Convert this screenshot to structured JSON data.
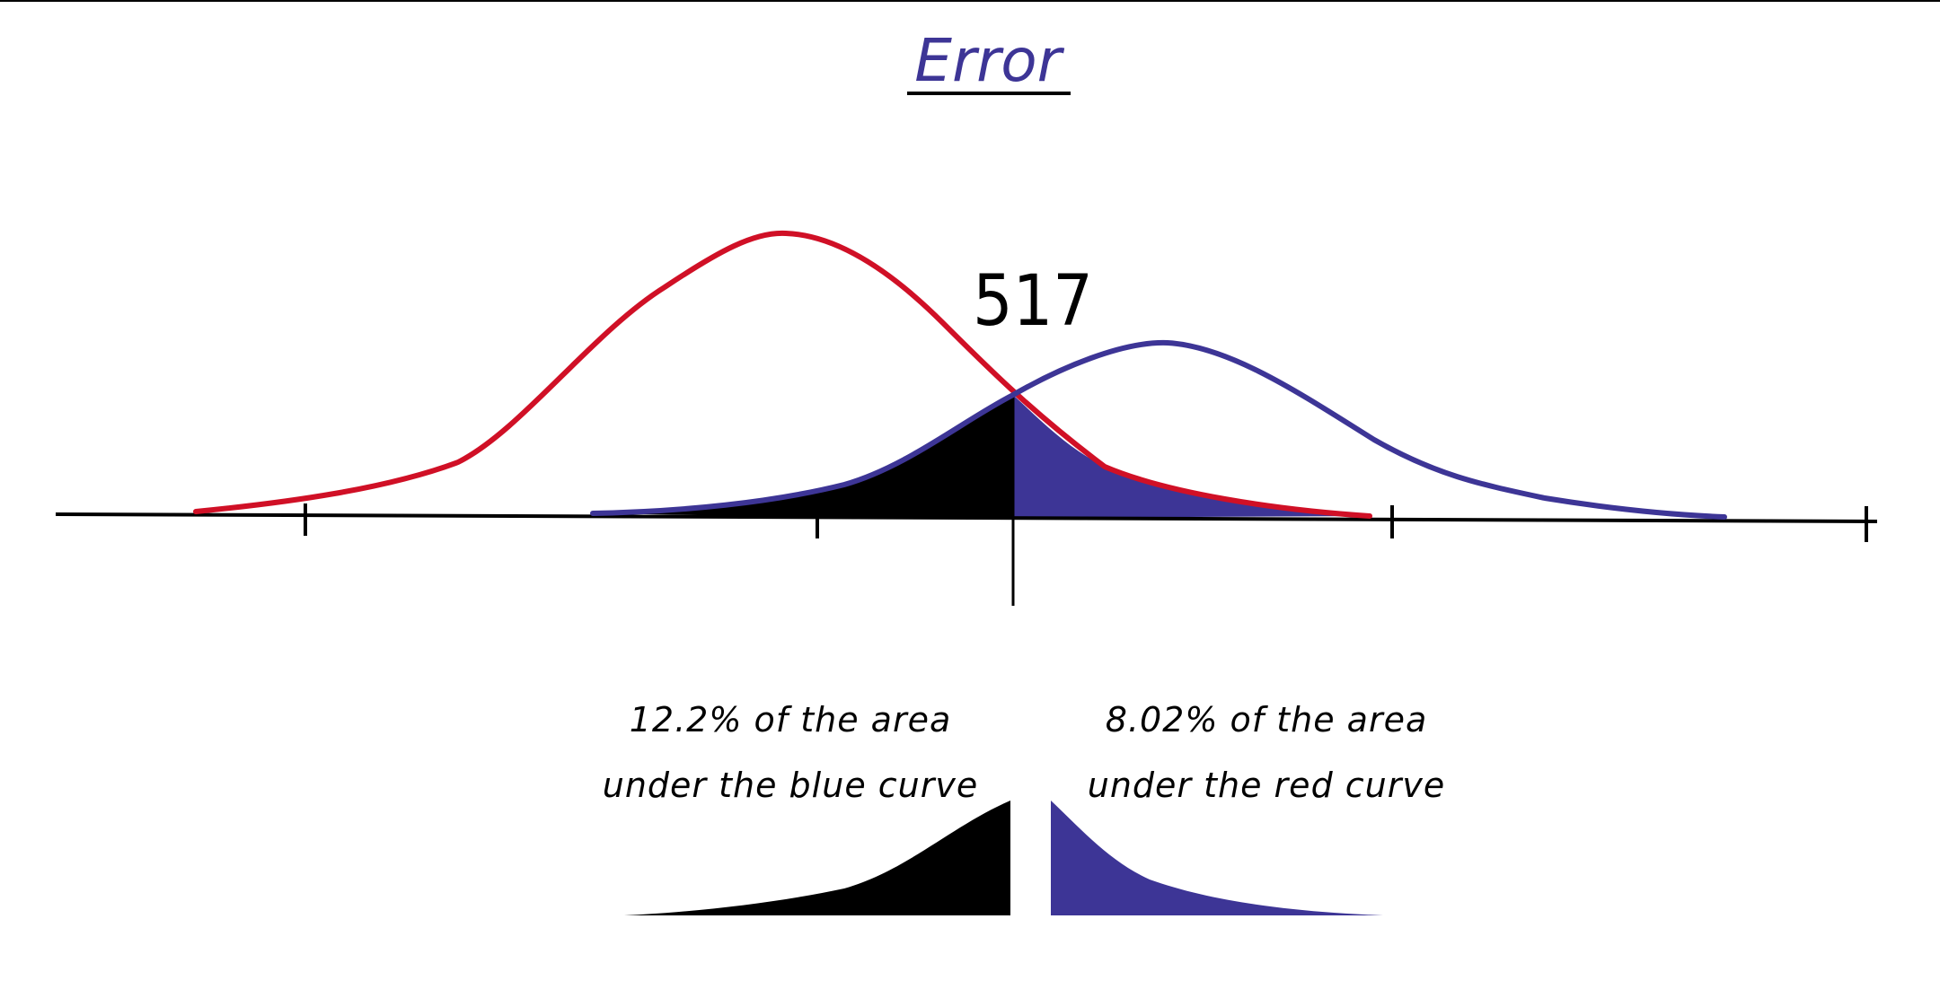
{
  "title": "Error",
  "threshold_label": "517",
  "captions": {
    "left_line1": "12.2% of the area",
    "left_line2": "under the blue curve",
    "right_line1": "8.02% of the area",
    "right_line2": "under the red curve"
  },
  "colors": {
    "red_curve": "#d01026",
    "blue_curve": "#3d3596",
    "blue_fill": "#3d3596",
    "black_fill": "#000000",
    "title": "#3d3596",
    "ink": "#000000"
  },
  "distributions": {
    "red": {
      "role": "left distribution",
      "shaded_tail": "right of threshold",
      "tail_area_percent": 8.02
    },
    "blue": {
      "role": "right distribution",
      "shaded_tail": "left of threshold",
      "tail_area_percent": 12.2
    }
  }
}
